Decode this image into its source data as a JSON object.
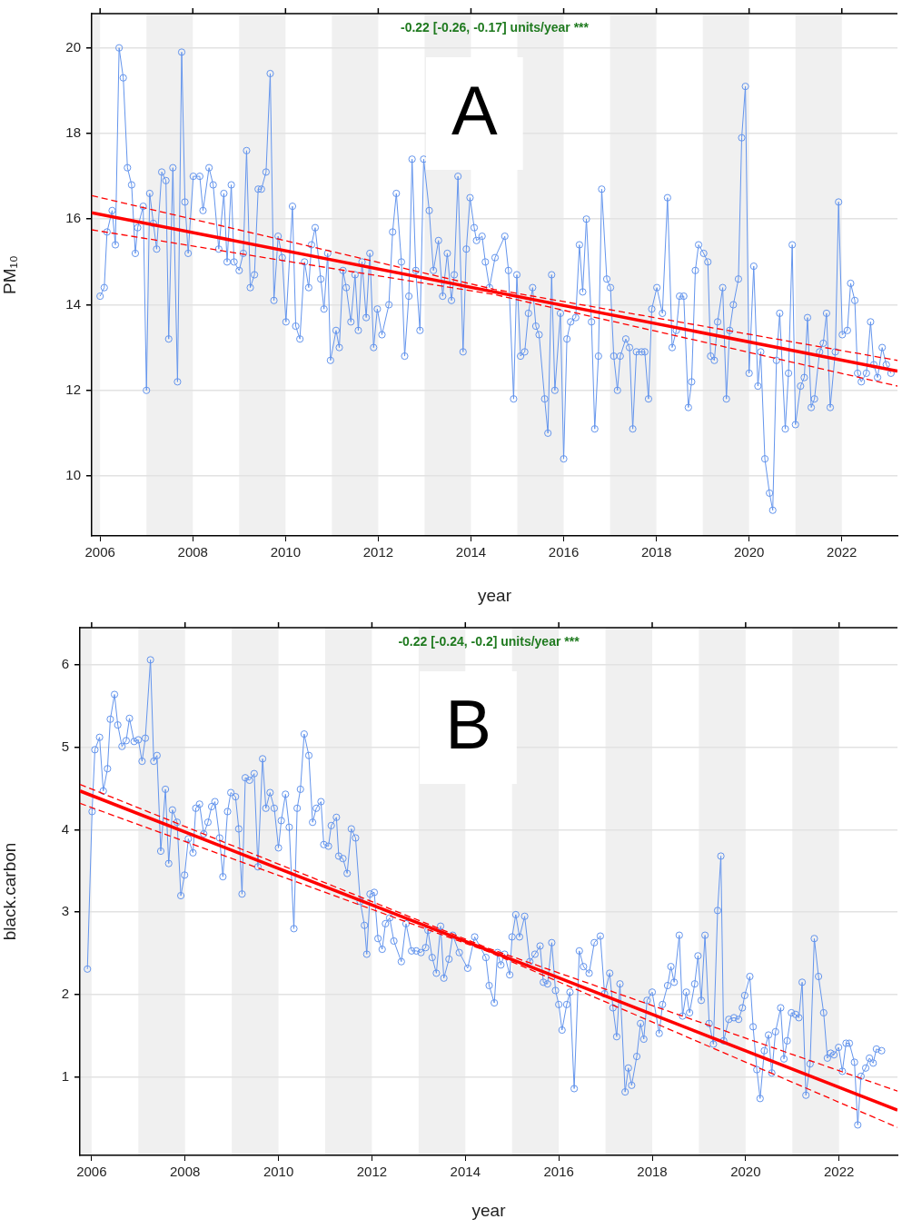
{
  "chart_data": [
    {
      "type": "line",
      "xlabel": "year",
      "ylabel": "PM₁₀",
      "annotations": [
        "-0.22 [-0.26, -0.17] units/year ***",
        "A"
      ],
      "xlim": [
        2005.82,
        2023.2
      ],
      "xticks": [
        2006,
        2008,
        2010,
        2012,
        2014,
        2016,
        2018,
        2020,
        2022
      ],
      "ylim": [
        8.6,
        20.8
      ],
      "yticks": [
        10,
        12,
        14,
        16,
        18,
        20
      ],
      "grid": "y",
      "marker": "circle",
      "bands": [
        {
          "axis": "x",
          "from": 2005.82,
          "to": 2006,
          "color": "#f0f0f0"
        },
        {
          "axis": "x",
          "from": 2007,
          "to": 2008,
          "color": "#f0f0f0"
        },
        {
          "axis": "x",
          "from": 2009,
          "to": 2010,
          "color": "#f0f0f0"
        },
        {
          "axis": "x",
          "from": 2011,
          "to": 2012,
          "color": "#f0f0f0"
        },
        {
          "axis": "x",
          "from": 2013,
          "to": 2014,
          "color": "#f0f0f0"
        },
        {
          "axis": "x",
          "from": 2015,
          "to": 2016,
          "color": "#f0f0f0"
        },
        {
          "axis": "x",
          "from": 2017,
          "to": 2018,
          "color": "#f0f0f0"
        },
        {
          "axis": "x",
          "from": 2019,
          "to": 2020,
          "color": "#f0f0f0"
        },
        {
          "axis": "x",
          "from": 2021,
          "to": 2022,
          "color": "#f0f0f0"
        }
      ],
      "series": [
        {
          "color": "#6495ed",
          "x": [
            2006.0,
            2006.09,
            2006.15,
            2006.26,
            2006.33,
            2006.41,
            2006.5,
            2006.59,
            2006.68,
            2006.76,
            2006.81,
            2006.93,
            2007.0,
            2007.07,
            2007.15,
            2007.22,
            2007.33,
            2007.42,
            2007.48,
            2007.57,
            2007.67,
            2007.76,
            2007.83,
            2007.9,
            2008.01,
            2008.15,
            2008.22,
            2008.35,
            2008.44,
            2008.56,
            2008.67,
            2008.74,
            2008.83,
            2008.89,
            2009.0,
            2009.09,
            2009.16,
            2009.24,
            2009.33,
            2009.41,
            2009.48,
            2009.58,
            2009.67,
            2009.75,
            2009.84,
            2009.93,
            2010.01,
            2010.15,
            2010.22,
            2010.31,
            2010.41,
            2010.5,
            2010.56,
            2010.64,
            2010.76,
            2010.83,
            2010.91,
            2010.97,
            2011.09,
            2011.16,
            2011.24,
            2011.31,
            2011.41,
            2011.5,
            2011.57,
            2011.65,
            2011.74,
            2011.82,
            2011.9,
            2011.98,
            2012.08,
            2012.23,
            2012.31,
            2012.39,
            2012.5,
            2012.57,
            2012.66,
            2012.73,
            2012.81,
            2012.9,
            2012.98,
            2013.1,
            2013.19,
            2013.3,
            2013.39,
            2013.49,
            2013.58,
            2013.64,
            2013.72,
            2013.83,
            2013.9,
            2013.98,
            2014.07,
            2014.12,
            2014.24,
            2014.31,
            2014.4,
            2014.52,
            2014.73,
            2014.81,
            2014.92,
            2014.99,
            2015.07,
            2015.16,
            2015.24,
            2015.33,
            2015.4,
            2015.47,
            2015.59,
            2015.66,
            2015.74,
            2015.81,
            2015.93,
            2016.0,
            2016.07,
            2016.15,
            2016.26,
            2016.34,
            2016.41,
            2016.49,
            2016.6,
            2016.67,
            2016.75,
            2016.82,
            2016.93,
            2017.01,
            2017.08,
            2017.16,
            2017.22,
            2017.34,
            2017.42,
            2017.49,
            2017.57,
            2017.68,
            2017.75,
            2017.83,
            2017.9,
            2018.01,
            2018.13,
            2018.24,
            2018.34,
            2018.43,
            2018.5,
            2018.59,
            2018.69,
            2018.76,
            2018.84,
            2018.91,
            2019.02,
            2019.11,
            2019.17,
            2019.25,
            2019.32,
            2019.43,
            2019.51,
            2019.58,
            2019.66,
            2019.77,
            2019.84,
            2019.92,
            2020.0,
            2020.1,
            2020.19,
            2020.25,
            2020.34,
            2020.44,
            2020.51,
            2020.59,
            2020.66,
            2020.78,
            2020.85,
            2020.93,
            2021.0,
            2021.11,
            2021.19,
            2021.26,
            2021.34,
            2021.41,
            2021.52,
            2021.6,
            2021.67,
            2021.75,
            2021.86,
            2021.93,
            2022.01,
            2022.12,
            2022.19,
            2022.28,
            2022.34,
            2022.42,
            2022.53,
            2022.62,
            2022.69,
            2022.77,
            2022.87,
            2022.96,
            2023.06
          ],
          "values": [
            14.2,
            14.4,
            15.7,
            16.2,
            15.4,
            20.0,
            19.3,
            17.2,
            16.8,
            15.2,
            15.8,
            16.3,
            12.0,
            16.6,
            15.9,
            15.3,
            17.1,
            16.9,
            13.2,
            17.2,
            12.2,
            19.9,
            16.4,
            15.2,
            17.0,
            17.0,
            16.2,
            17.2,
            16.8,
            15.3,
            16.6,
            15.0,
            16.8,
            15.0,
            14.8,
            15.2,
            17.6,
            14.4,
            14.7,
            16.7,
            16.7,
            17.1,
            19.4,
            14.1,
            15.6,
            15.1,
            13.6,
            16.3,
            13.5,
            13.2,
            15.0,
            14.4,
            15.4,
            15.8,
            14.6,
            13.9,
            15.2,
            12.7,
            13.4,
            13.0,
            14.8,
            14.4,
            13.6,
            14.7,
            13.4,
            15.0,
            13.7,
            15.2,
            13.0,
            13.9,
            13.3,
            14.0,
            15.7,
            16.6,
            15.0,
            12.8,
            14.2,
            17.4,
            14.8,
            13.4,
            17.4,
            16.2,
            14.8,
            15.5,
            14.2,
            15.2,
            14.1,
            14.7,
            17.0,
            12.9,
            15.3,
            16.5,
            15.8,
            15.5,
            15.6,
            15.0,
            14.4,
            15.1,
            15.6,
            14.8,
            11.8,
            14.7,
            12.8,
            12.9,
            13.8,
            14.4,
            13.5,
            13.3,
            11.8,
            11.0,
            14.7,
            12.0,
            13.8,
            10.4,
            13.2,
            13.6,
            13.7,
            15.4,
            14.3,
            16.0,
            13.6,
            11.1,
            12.8,
            16.7,
            14.6,
            14.4,
            12.8,
            12.0,
            12.8,
            13.2,
            13.0,
            11.1,
            12.9,
            12.9,
            12.9,
            11.8,
            13.9,
            14.4,
            13.8,
            16.5,
            13.0,
            13.4,
            14.2,
            14.2,
            11.6,
            12.2,
            14.8,
            15.4,
            15.2,
            15.0,
            12.8,
            12.7,
            13.6,
            14.4,
            11.8,
            13.4,
            14.0,
            14.6,
            17.9,
            19.1,
            12.4,
            14.9,
            12.1,
            12.9,
            10.4,
            9.6,
            9.2,
            12.7,
            13.8,
            11.1,
            12.4,
            15.4,
            11.2,
            12.1,
            12.3,
            13.7,
            11.6,
            11.8,
            12.9,
            13.1,
            13.8,
            11.6,
            12.9,
            16.4,
            13.3,
            13.4,
            14.5,
            14.1,
            12.4,
            12.2,
            12.4,
            13.6,
            12.6,
            12.3,
            13.0,
            12.6,
            12.4
          ]
        },
        {
          "type": "line",
          "color": "#ff0000",
          "marker": "none",
          "x": [
            2005.82,
            2023.2
          ],
          "values": [
            16.15,
            12.45
          ]
        },
        {
          "type": "line",
          "color": "#ff0000",
          "marker": "none",
          "line_style": "dashed",
          "x": [
            2005.82,
            2014.5,
            2023.2
          ],
          "values": [
            16.55,
            14.36,
            12.7
          ]
        },
        {
          "type": "line",
          "color": "#ff0000",
          "marker": "none",
          "line_style": "dashed",
          "x": [
            2005.82,
            2014.5,
            2023.2
          ],
          "values": [
            15.75,
            14.24,
            12.1
          ]
        }
      ]
    },
    {
      "type": "line",
      "xlabel": "year",
      "ylabel": "black.carbon",
      "annotations": [
        "-0.22 [-0.24, -0.2] units/year ***",
        "B"
      ],
      "xlim": [
        2005.75,
        2023.25
      ],
      "xticks": [
        2006,
        2008,
        2010,
        2012,
        2014,
        2016,
        2018,
        2020,
        2022
      ],
      "ylim": [
        0.05,
        6.45
      ],
      "yticks": [
        1,
        2,
        3,
        4,
        5,
        6
      ],
      "grid": "y",
      "marker": "circle",
      "bands": [
        {
          "axis": "x",
          "from": 2005.75,
          "to": 2006,
          "color": "#f0f0f0"
        },
        {
          "axis": "x",
          "from": 2007,
          "to": 2008,
          "color": "#f0f0f0"
        },
        {
          "axis": "x",
          "from": 2009,
          "to": 2010,
          "color": "#f0f0f0"
        },
        {
          "axis": "x",
          "from": 2011,
          "to": 2012,
          "color": "#f0f0f0"
        },
        {
          "axis": "x",
          "from": 2013,
          "to": 2014,
          "color": "#f0f0f0"
        },
        {
          "axis": "x",
          "from": 2015,
          "to": 2016,
          "color": "#f0f0f0"
        },
        {
          "axis": "x",
          "from": 2017,
          "to": 2018,
          "color": "#f0f0f0"
        },
        {
          "axis": "x",
          "from": 2019,
          "to": 2020,
          "color": "#f0f0f0"
        },
        {
          "axis": "x",
          "from": 2021,
          "to": 2022,
          "color": "#f0f0f0"
        }
      ],
      "series": [
        {
          "color": "#6495ed",
          "x": [
            2005.91,
            2006.01,
            2006.07,
            2006.17,
            2006.25,
            2006.34,
            2006.4,
            2006.49,
            2006.56,
            2006.65,
            2006.74,
            2006.81,
            2006.91,
            2007.0,
            2007.08,
            2007.15,
            2007.26,
            2007.33,
            2007.4,
            2007.48,
            2007.58,
            2007.65,
            2007.73,
            2007.83,
            2007.91,
            2007.99,
            2008.07,
            2008.17,
            2008.23,
            2008.31,
            2008.4,
            2008.49,
            2008.57,
            2008.64,
            2008.74,
            2008.81,
            2008.91,
            2008.98,
            2009.08,
            2009.15,
            2009.22,
            2009.29,
            2009.38,
            2009.48,
            2009.56,
            2009.66,
            2009.73,
            2009.82,
            2009.91,
            2010.0,
            2010.06,
            2010.15,
            2010.23,
            2010.33,
            2010.4,
            2010.47,
            2010.55,
            2010.65,
            2010.73,
            2010.81,
            2010.91,
            2010.97,
            2011.07,
            2011.13,
            2011.24,
            2011.29,
            2011.38,
            2011.47,
            2011.56,
            2011.65,
            2011.75,
            2011.84,
            2011.89,
            2011.96,
            2012.05,
            2012.13,
            2012.22,
            2012.29,
            2012.38,
            2012.47,
            2012.63,
            2012.73,
            2012.85,
            2012.95,
            2013.05,
            2013.15,
            2013.2,
            2013.29,
            2013.38,
            2013.47,
            2013.54,
            2013.65,
            2013.73,
            2013.87,
            2014.05,
            2014.2,
            2014.44,
            2014.51,
            2014.62,
            2014.69,
            2014.76,
            2014.84,
            2014.95,
            2015.0,
            2015.08,
            2015.16,
            2015.27,
            2015.38,
            2015.49,
            2015.6,
            2015.67,
            2015.76,
            2015.85,
            2015.93,
            2016.0,
            2016.07,
            2016.17,
            2016.24,
            2016.33,
            2016.44,
            2016.53,
            2016.65,
            2016.76,
            2016.89,
            2016.98,
            2017.09,
            2017.16,
            2017.24,
            2017.31,
            2017.42,
            2017.49,
            2017.56,
            2017.67,
            2017.75,
            2017.82,
            2017.89,
            2018.0,
            2018.15,
            2018.22,
            2018.33,
            2018.4,
            2018.47,
            2018.58,
            2018.65,
            2018.73,
            2018.8,
            2018.91,
            2018.98,
            2019.05,
            2019.13,
            2019.22,
            2019.31,
            2019.4,
            2019.47,
            2019.53,
            2019.64,
            2019.75,
            2019.85,
            2019.93,
            2019.98,
            2020.09,
            2020.16,
            2020.24,
            2020.31,
            2020.4,
            2020.49,
            2020.56,
            2020.64,
            2020.75,
            2020.82,
            2020.89,
            2020.98,
            2021.07,
            2021.14,
            2021.21,
            2021.29,
            2021.38,
            2021.47,
            2021.56,
            2021.67,
            2021.75,
            2021.82,
            2021.89,
            2021.99,
            2022.07,
            2022.15,
            2022.22,
            2022.33,
            2022.4,
            2022.47,
            2022.57,
            2022.65,
            2022.73,
            2022.8,
            2022.91
          ],
          "values": [
            2.31,
            4.22,
            4.97,
            5.12,
            4.47,
            4.74,
            5.34,
            5.64,
            5.27,
            5.01,
            5.08,
            5.35,
            5.07,
            5.09,
            4.83,
            5.11,
            6.06,
            4.83,
            4.9,
            3.74,
            4.49,
            3.59,
            4.24,
            4.09,
            3.2,
            3.45,
            3.89,
            3.72,
            4.26,
            4.31,
            3.95,
            4.09,
            4.28,
            4.34,
            3.9,
            3.43,
            4.22,
            4.45,
            4.4,
            4.01,
            3.22,
            4.63,
            4.6,
            4.68,
            3.55,
            4.86,
            4.26,
            4.45,
            4.26,
            3.78,
            4.11,
            4.43,
            4.03,
            2.8,
            4.26,
            4.49,
            5.16,
            4.9,
            4.09,
            4.26,
            4.34,
            3.82,
            3.8,
            4.05,
            4.15,
            3.68,
            3.65,
            3.47,
            4.01,
            3.9,
            3.13,
            2.84,
            2.49,
            3.22,
            3.24,
            2.68,
            2.55,
            2.86,
            2.93,
            2.65,
            2.4,
            2.86,
            2.53,
            2.53,
            2.51,
            2.57,
            2.78,
            2.45,
            2.26,
            2.83,
            2.2,
            2.43,
            2.72,
            2.51,
            2.32,
            2.7,
            2.45,
            2.11,
            1.9,
            2.51,
            2.36,
            2.49,
            2.24,
            2.7,
            2.97,
            2.7,
            2.95,
            2.4,
            2.49,
            2.59,
            2.15,
            2.13,
            2.63,
            2.05,
            1.88,
            1.57,
            1.88,
            2.03,
            0.86,
            2.53,
            2.34,
            2.26,
            2.63,
            2.71,
            2.01,
            2.26,
            1.84,
            1.49,
            2.13,
            0.82,
            1.11,
            0.9,
            1.25,
            1.65,
            1.46,
            1.93,
            2.03,
            1.53,
            1.88,
            2.11,
            2.34,
            2.15,
            2.72,
            1.74,
            2.03,
            1.78,
            2.13,
            2.47,
            1.93,
            2.72,
            1.65,
            1.4,
            3.02,
            3.68,
            1.44,
            1.7,
            1.72,
            1.7,
            1.84,
            1.99,
            2.22,
            1.61,
            1.09,
            0.74,
            1.32,
            1.51,
            1.05,
            1.55,
            1.84,
            1.22,
            1.44,
            1.78,
            1.76,
            1.72,
            2.15,
            0.78,
            1.16,
            2.68,
            2.22,
            1.78,
            1.23,
            1.29,
            1.27,
            1.36,
            1.07,
            1.41,
            1.41,
            1.18,
            0.42,
            1.01,
            1.11,
            1.23,
            1.17,
            1.34,
            1.32
          ]
        },
        {
          "type": "line",
          "color": "#ff0000",
          "marker": "none",
          "x": [
            2005.75,
            2023.25
          ],
          "values": [
            4.47,
            0.6
          ]
        },
        {
          "type": "line",
          "color": "#ff0000",
          "marker": "none",
          "line_style": "dashed",
          "x": [
            2005.75,
            2014.5,
            2023.25
          ],
          "values": [
            4.55,
            2.56,
            0.83
          ]
        },
        {
          "type": "line",
          "color": "#ff0000",
          "marker": "none",
          "line_style": "dashed",
          "x": [
            2005.75,
            2014.5,
            2023.25
          ],
          "values": [
            4.32,
            2.52,
            0.39
          ]
        }
      ]
    }
  ]
}
